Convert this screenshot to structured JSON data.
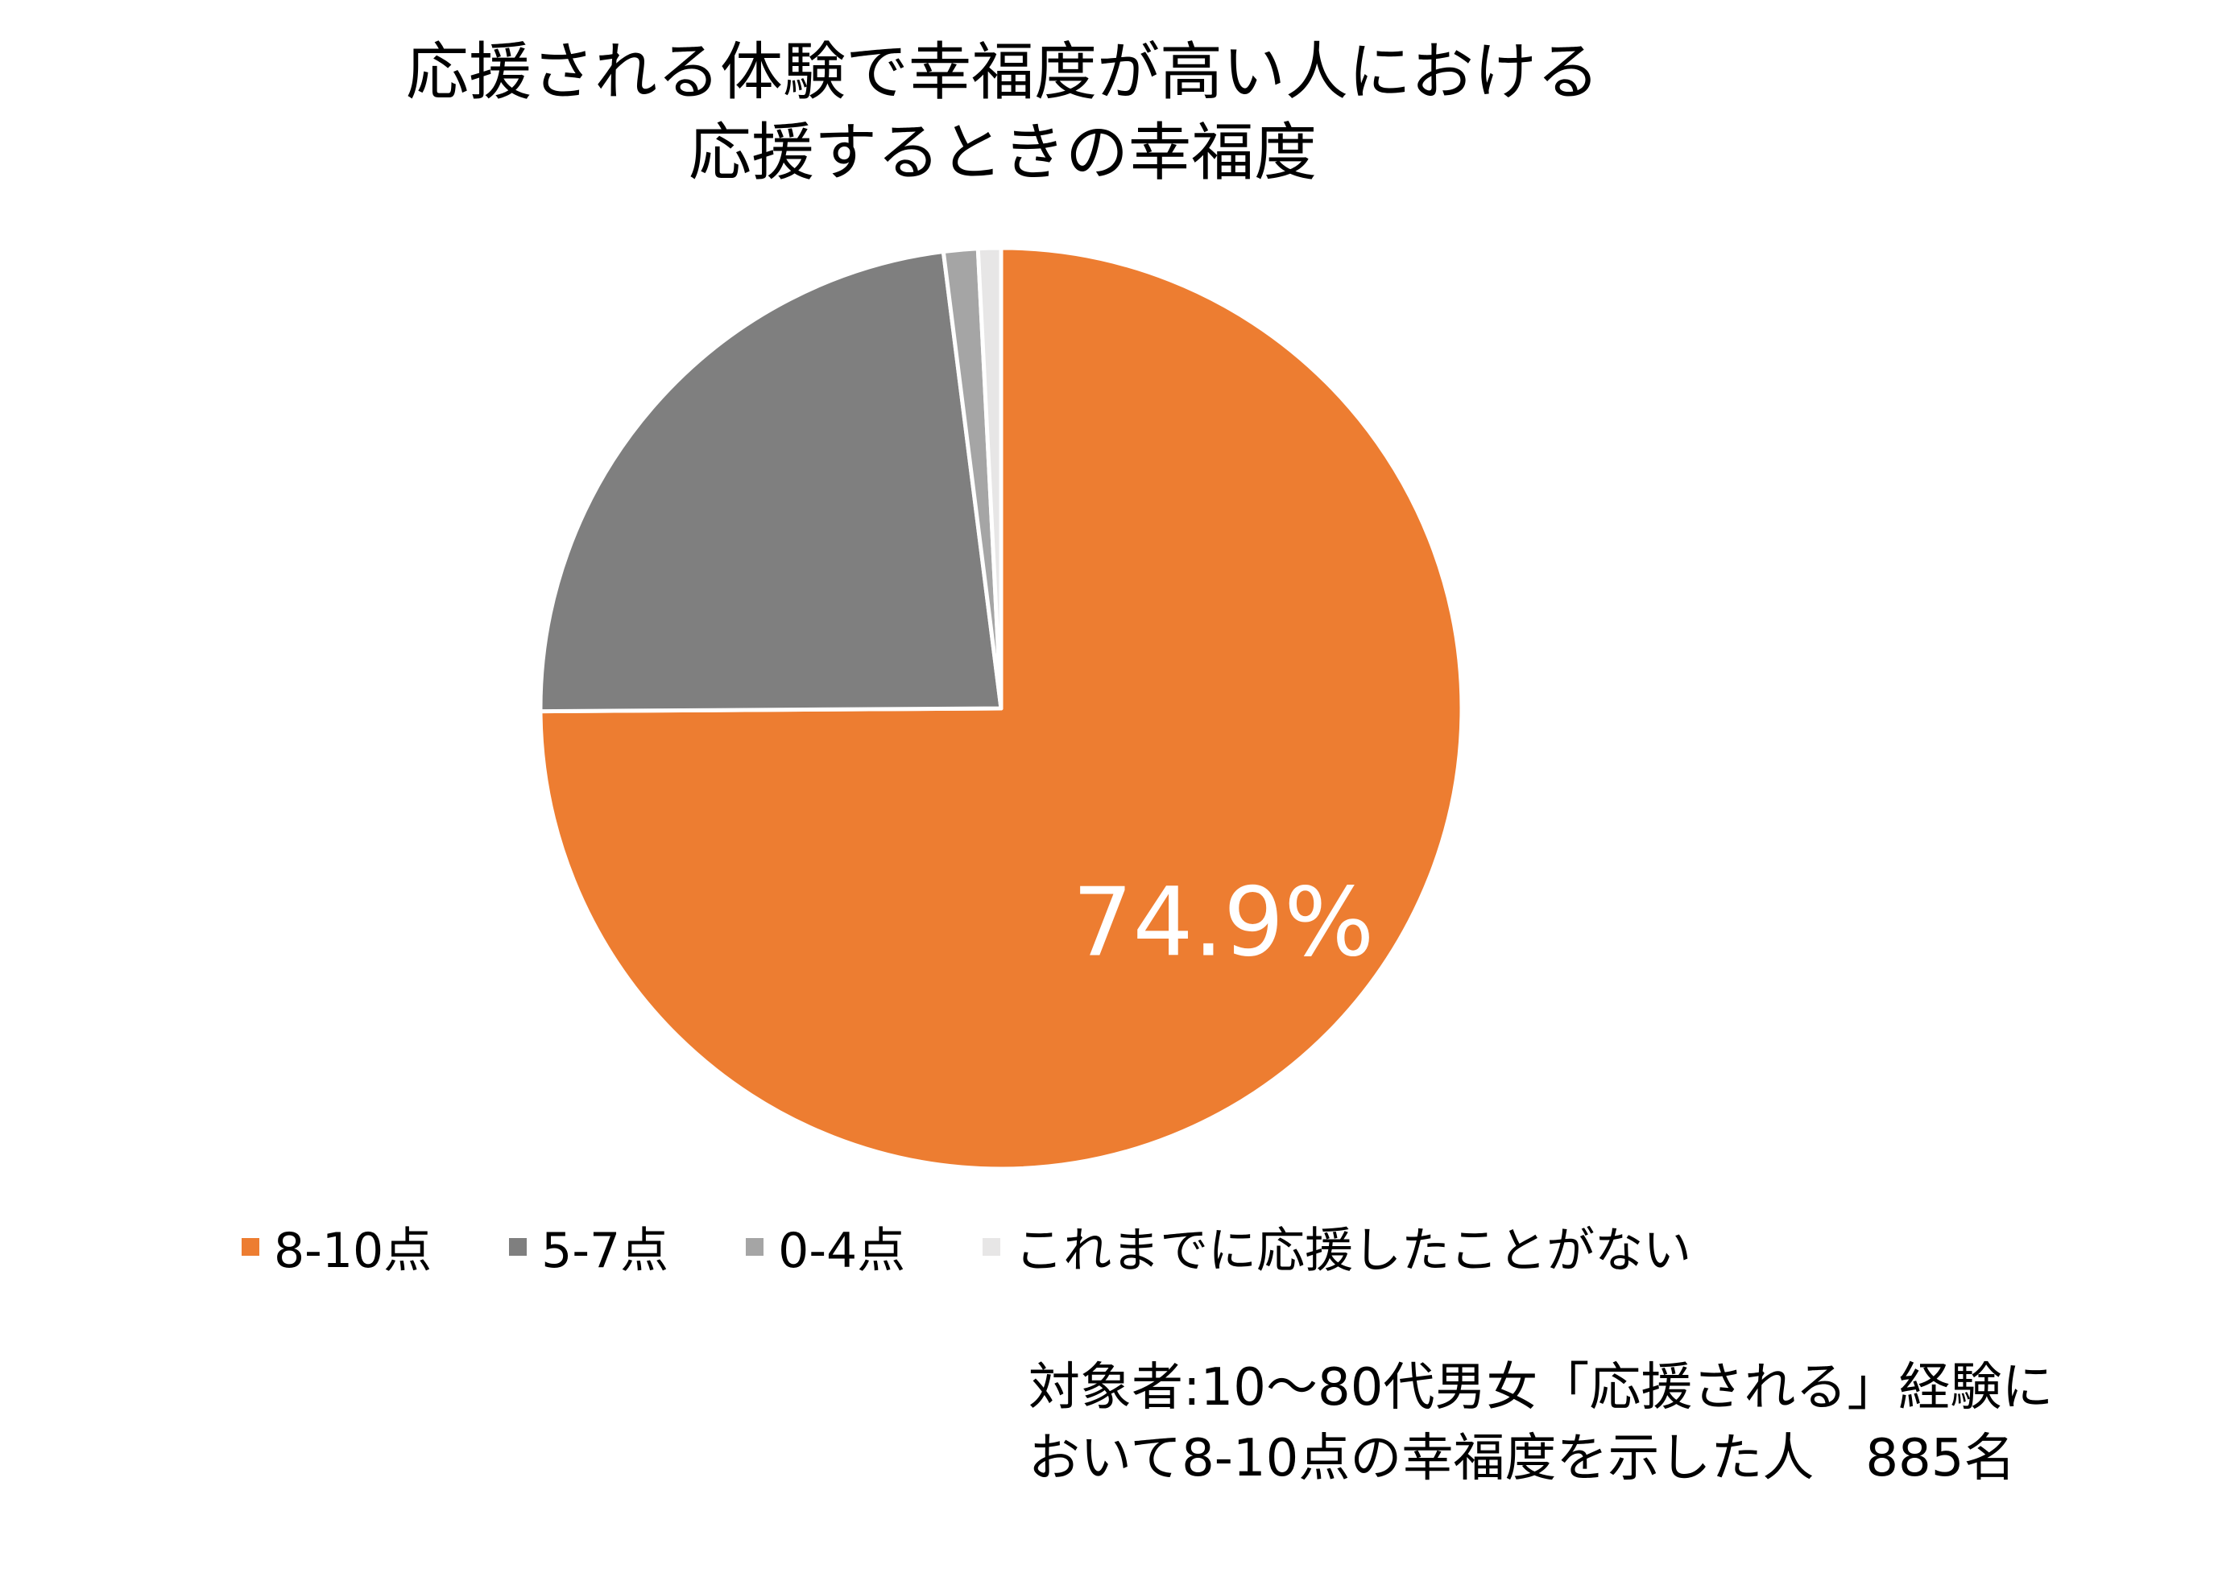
{
  "chart_data": {
    "type": "pie",
    "title_lines": [
      "応援される体験で幸福度が高い人における",
      "応援するときの幸福度"
    ],
    "categories": [
      "8-10点",
      "5-7点",
      "0-4点",
      "これまでに応援したことがない"
    ],
    "values": [
      74.9,
      23.1,
      1.2,
      0.8
    ],
    "colors": [
      "#ED7D31",
      "#7F7F7F",
      "#A5A5A5",
      "#E7E6E6"
    ],
    "data_labels": [
      "74.9%",
      "",
      "",
      ""
    ],
    "legend_position": "bottom"
  },
  "note_lines": [
    "対象者:10～80代男女「応援される」経験に",
    "おいて8-10点の幸福度を示した人　885名"
  ]
}
